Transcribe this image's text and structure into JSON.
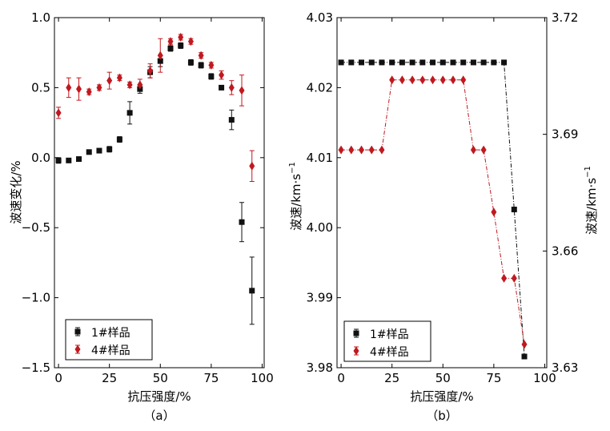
{
  "chart_data": [
    {
      "panel_label": "（a）",
      "type": "scatter",
      "xlabel": "抗压强度/%",
      "ylabel": "波速变化/%",
      "xlim": [
        -2,
        101
      ],
      "ylim": [
        -1.5,
        1.0
      ],
      "xticks": [
        0,
        25,
        50,
        75,
        100
      ],
      "yticks": [
        1.0,
        0.5,
        0.0,
        -0.5,
        -1.0,
        -1.5
      ],
      "ytick_labels": [
        "1.0",
        "0.5",
        "0.0",
        "−0.5",
        "−1.0",
        "−1.5"
      ],
      "legend_position": "lower-left",
      "error_bars": true,
      "series": [
        {
          "name": "1#样品",
          "color": "#111111",
          "marker": "square",
          "points": [
            {
              "x": 0,
              "y": -0.02,
              "err": 0.02
            },
            {
              "x": 5,
              "y": -0.02,
              "err": 0.01
            },
            {
              "x": 10,
              "y": -0.01,
              "err": 0.01
            },
            {
              "x": 15,
              "y": 0.04,
              "err": 0.01
            },
            {
              "x": 20,
              "y": 0.05,
              "err": 0.01
            },
            {
              "x": 25,
              "y": 0.06,
              "err": 0.02
            },
            {
              "x": 30,
              "y": 0.13,
              "err": 0.02
            },
            {
              "x": 35,
              "y": 0.32,
              "err": 0.08
            },
            {
              "x": 40,
              "y": 0.49,
              "err": 0.03
            },
            {
              "x": 45,
              "y": 0.61,
              "err": 0.04
            },
            {
              "x": 50,
              "y": 0.69,
              "err": 0.04
            },
            {
              "x": 55,
              "y": 0.78,
              "err": 0.02
            },
            {
              "x": 60,
              "y": 0.8,
              "err": 0.02
            },
            {
              "x": 65,
              "y": 0.68,
              "err": 0.02
            },
            {
              "x": 70,
              "y": 0.66,
              "err": 0.02
            },
            {
              "x": 75,
              "y": 0.58,
              "err": 0.02
            },
            {
              "x": 80,
              "y": 0.5,
              "err": 0.01
            },
            {
              "x": 85,
              "y": 0.27,
              "err": 0.07
            },
            {
              "x": 90,
              "y": -0.46,
              "err": 0.14
            },
            {
              "x": 95,
              "y": -0.95,
              "err": 0.24
            }
          ]
        },
        {
          "name": "4#样品",
          "color": "#c0191f",
          "marker": "diamond",
          "points": [
            {
              "x": 0,
              "y": 0.32,
              "err": 0.04
            },
            {
              "x": 5,
              "y": 0.5,
              "err": 0.07
            },
            {
              "x": 10,
              "y": 0.49,
              "err": 0.08
            },
            {
              "x": 15,
              "y": 0.47,
              "err": 0.02
            },
            {
              "x": 20,
              "y": 0.5,
              "err": 0.02
            },
            {
              "x": 25,
              "y": 0.55,
              "err": 0.06
            },
            {
              "x": 30,
              "y": 0.57,
              "err": 0.02
            },
            {
              "x": 35,
              "y": 0.52,
              "err": 0.02
            },
            {
              "x": 40,
              "y": 0.52,
              "err": 0.04
            },
            {
              "x": 45,
              "y": 0.62,
              "err": 0.05
            },
            {
              "x": 50,
              "y": 0.73,
              "err": 0.12
            },
            {
              "x": 55,
              "y": 0.83,
              "err": 0.02
            },
            {
              "x": 60,
              "y": 0.86,
              "err": 0.02
            },
            {
              "x": 65,
              "y": 0.83,
              "err": 0.02
            },
            {
              "x": 70,
              "y": 0.73,
              "err": 0.02
            },
            {
              "x": 75,
              "y": 0.66,
              "err": 0.02
            },
            {
              "x": 80,
              "y": 0.59,
              "err": 0.03
            },
            {
              "x": 85,
              "y": 0.5,
              "err": 0.05
            },
            {
              "x": 90,
              "y": 0.48,
              "err": 0.11
            },
            {
              "x": 95,
              "y": -0.06,
              "err": 0.11
            }
          ]
        }
      ]
    },
    {
      "panel_label": "（b）",
      "type": "line",
      "xlabel": "抗压强度/%",
      "ylabel": "波速/km·s",
      "ylabel_superscript": "−1",
      "ylabel_right": "波速/km·s",
      "ylabel_right_superscript": "−1",
      "xlim": [
        -2,
        101
      ],
      "ylim": [
        3.98,
        4.03
      ],
      "ylim_right": [
        3.63,
        3.72
      ],
      "xticks": [
        0,
        25,
        50,
        75,
        100
      ],
      "yticks": [
        4.03,
        4.02,
        4.01,
        4.0,
        3.99,
        3.98
      ],
      "ytick_labels": [
        "4.03",
        "4.02",
        "4.01",
        "4.00",
        "3.99",
        "3.98"
      ],
      "yticks_right": [
        3.72,
        3.69,
        3.66,
        3.63
      ],
      "ytick_labels_right": [
        "3.72",
        "3.69",
        "3.66",
        "3.63"
      ],
      "legend_position": "lower-left",
      "line_style": "dash-dot",
      "series": [
        {
          "name": "1#样品",
          "axis": "left",
          "color": "#111111",
          "marker": "square",
          "x": [
            0,
            5,
            10,
            15,
            20,
            25,
            30,
            35,
            40,
            45,
            50,
            55,
            60,
            65,
            70,
            75,
            80,
            85,
            90
          ],
          "y": [
            4.0236,
            4.0236,
            4.0236,
            4.0236,
            4.0236,
            4.0236,
            4.0236,
            4.0236,
            4.0236,
            4.0236,
            4.0236,
            4.0236,
            4.0236,
            4.0236,
            4.0236,
            4.0236,
            4.0236,
            4.0026,
            3.9816
          ]
        },
        {
          "name": "4#样品",
          "axis": "right",
          "color": "#c0191f",
          "marker": "diamond",
          "x": [
            0,
            5,
            10,
            15,
            20,
            25,
            30,
            35,
            40,
            45,
            50,
            55,
            60,
            65,
            70,
            75,
            80,
            85,
            90
          ],
          "y": [
            3.686,
            3.686,
            3.686,
            3.686,
            3.686,
            3.704,
            3.704,
            3.704,
            3.704,
            3.704,
            3.704,
            3.704,
            3.704,
            3.686,
            3.686,
            3.67,
            3.653,
            3.653,
            3.636
          ]
        }
      ]
    }
  ]
}
